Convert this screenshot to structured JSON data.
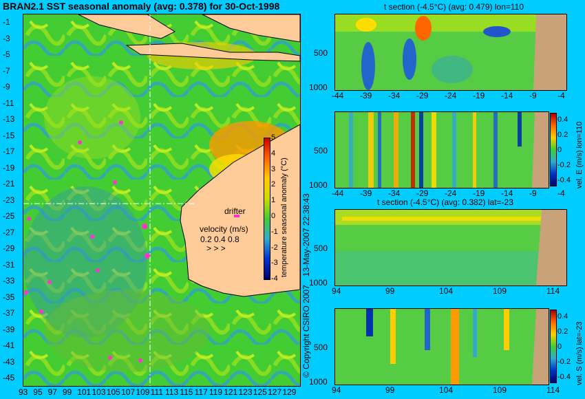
{
  "header": {
    "main_title": "BRAN2.1 SST seasonal anomaly (avg: 0.378) for 30-Oct-1998",
    "panel_titles": [
      "t section (-4.5°C) (avg: 0.479) lon=110",
      "t section (-4.5°C) (avg: 0.382) lat=-23"
    ]
  },
  "side_text": {
    "date_stamp": "13-May-2007 22:38:43",
    "copyright": "© Copyright CSIRO 2007"
  },
  "legend": {
    "drifter_label": "drifter",
    "velocity_label": "velocity (m/s)",
    "velocity_values": "0.2  0.4  0.8",
    "velocity_arrows": ">   >   >",
    "colorbar_label": "temperature seasonal anomaly (°C)",
    "colorbar_ticks": [
      "5",
      "4",
      "3",
      "2",
      "1",
      "0",
      "-1",
      "-2",
      "-3",
      "-4"
    ],
    "vel_colorbar_ticks": [
      "0.4",
      "0.2",
      "0",
      "-0.2",
      "-0.4"
    ],
    "vel_e_label": "vel. E (m/s) lon=110",
    "vel_s_label": "vel. S (m/s) lat=-23"
  },
  "chart_data": [
    {
      "type": "heatmap",
      "title": "BRAN2.1 SST seasonal anomaly (avg: 0.378) for 30-Oct-1998",
      "x_ticks": [
        "93",
        "95",
        "97",
        "99",
        "101",
        "103",
        "105",
        "107",
        "109",
        "111",
        "113",
        "115",
        "117",
        "119",
        "121",
        "123",
        "125",
        "127",
        "129"
      ],
      "y_ticks": [
        "-1",
        "-3",
        "-5",
        "-7",
        "-9",
        "-11",
        "-13",
        "-15",
        "-17",
        "-19",
        "-21",
        "-23",
        "-25",
        "-27",
        "-29",
        "-31",
        "-33",
        "-35",
        "-37",
        "-39",
        "-41",
        "-43",
        "-45"
      ],
      "xlim": [
        93,
        130
      ],
      "ylim": [
        -45,
        0
      ],
      "colorbar_range": [
        -4,
        5
      ]
    },
    {
      "type": "heatmap",
      "title": "t section (-4.5°C) (avg: 0.479) lon=110",
      "x_ticks": [
        "-44",
        "-39",
        "-34",
        "-29",
        "-24",
        "-19",
        "-14",
        "-9",
        "-4"
      ],
      "y_ticks": [
        "500",
        "1000"
      ]
    },
    {
      "type": "heatmap",
      "title": "",
      "x_ticks": [
        "-44",
        "-39",
        "-34",
        "-29",
        "-24",
        "-19",
        "-14",
        "-9",
        "-4"
      ],
      "y_ticks": [
        "500",
        "1000"
      ],
      "colorbar_range": [
        -0.4,
        0.4
      ]
    },
    {
      "type": "heatmap",
      "title": "t section (-4.5°C) (avg: 0.382) lat=-23",
      "x_ticks": [
        "94",
        "99",
        "104",
        "109",
        "114"
      ],
      "y_ticks": [
        "500",
        "1000"
      ]
    },
    {
      "type": "heatmap",
      "title": "",
      "x_ticks": [
        "94",
        "99",
        "104",
        "109",
        "114"
      ],
      "y_ticks": [
        "500",
        "1000"
      ],
      "colorbar_range": [
        -0.4,
        0.4
      ]
    }
  ]
}
